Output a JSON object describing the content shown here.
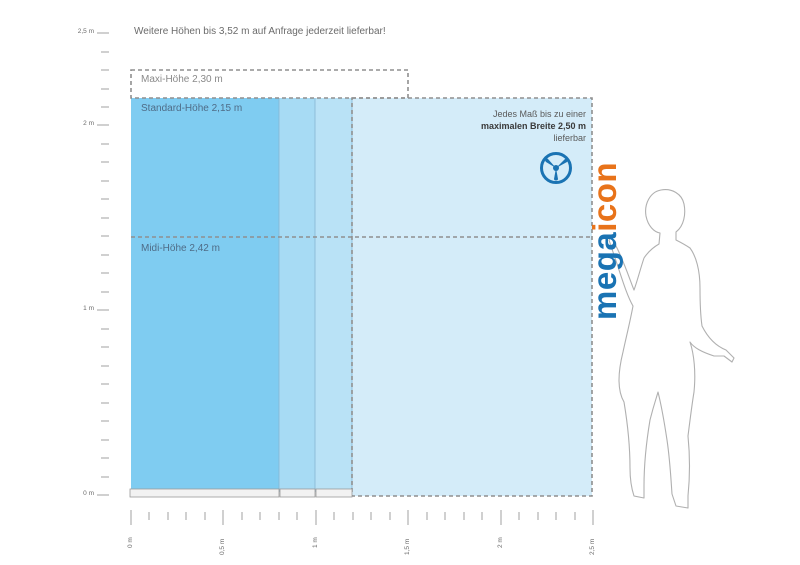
{
  "note_top": "Weitere Höhen bis 3,52 m auf Anfrage jederzeit lieferbar!",
  "y_axis": {
    "labels": [
      "2,5 m",
      "2 m",
      "1 m",
      "0 m"
    ]
  },
  "x_axis": {
    "labels": [
      "0 m",
      "0,5 m",
      "1 m",
      "1,5 m",
      "2 m",
      "2,5 m"
    ]
  },
  "heights": {
    "maxi": "Maxi-Höhe 2,30 m",
    "standard": "Standard-Höhe 2,15 m",
    "midi": "Midi-Höhe 2,42 m"
  },
  "width_note": {
    "line1": "Jedes Maß bis zu einer",
    "line2": "maximalen Breite 2,50 m",
    "line3": "lieferbar"
  },
  "brand": {
    "part1": "mega",
    "part2": "icon",
    "color1": "#1a73b3",
    "color2": "#e8731a",
    "icon": "propeller-icon"
  },
  "colors": {
    "panel_dark": "#7fccf1",
    "panel_mid": "#a7dbf4",
    "panel_light": "#d4ecf9",
    "outline": "#8f8f8f",
    "axis": "#7a7a7a"
  },
  "figure": "human-silhouette-icon"
}
